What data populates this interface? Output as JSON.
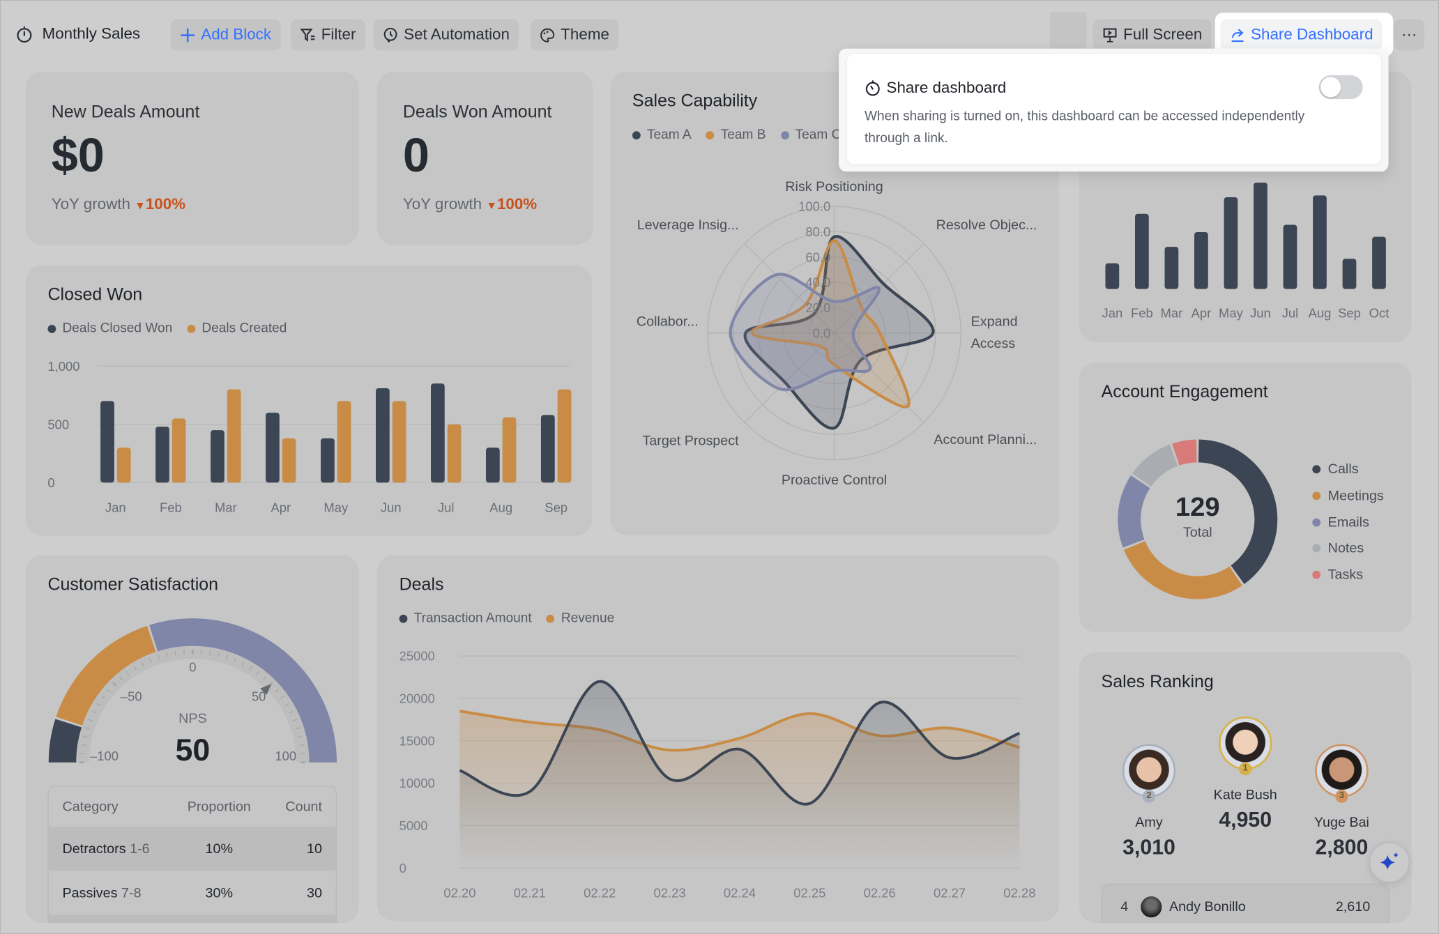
{
  "toolbar": {
    "title": "Monthly Sales",
    "add_block": "Add Block",
    "filter": "Filter",
    "set_automation": "Set Automation",
    "theme": "Theme",
    "full_screen": "Full Screen",
    "share_dashboard": "Share Dashboard",
    "more": "···",
    "accent": "#3370ff"
  },
  "share_popover": {
    "title": "Share dashboard",
    "description": "When sharing is turned on, this dashboard can be accessed independently through a link.",
    "toggle_on": false
  },
  "kpis": [
    {
      "label": "New Deals Amount",
      "value": "$0",
      "growth_label": "YoY growth",
      "growth_value": "100%",
      "direction": "down"
    },
    {
      "label": "Deals Won Amount",
      "value": "0",
      "growth_label": "YoY growth",
      "growth_value": "100%",
      "direction": "down"
    }
  ],
  "colors": {
    "dark": "#3c4553",
    "orange": "#c98c47",
    "purple": "#7f86a8",
    "gray": "#a9acb0",
    "red": "#d97a7a",
    "down": "#c8511c"
  },
  "chart_data": [
    {
      "id": "closed_won",
      "type": "bar",
      "title": "Closed Won",
      "categories": [
        "Jan",
        "Feb",
        "Mar",
        "Apr",
        "May",
        "Jun",
        "Jul",
        "Aug",
        "Sep"
      ],
      "series": [
        {
          "name": "Deals Closed Won",
          "values": [
            700,
            480,
            450,
            600,
            380,
            810,
            850,
            300,
            580
          ]
        },
        {
          "name": "Deals Created",
          "values": [
            300,
            550,
            800,
            380,
            700,
            700,
            500,
            560,
            800
          ]
        }
      ],
      "yticks": [
        "0",
        "500",
        "1,000"
      ],
      "ylim": [
        0,
        1000
      ],
      "grid": true,
      "legend": "top-left"
    },
    {
      "id": "sales_capability",
      "type": "radar",
      "title": "Sales Capability",
      "axes": [
        "Risk Positioning",
        "Resolve Objec...",
        "Expand Access",
        "Account Planni...",
        "Proactive Control",
        "Target Prospect",
        "Collabor...",
        "Leverage Insig..."
      ],
      "ticks": [
        "0.0",
        "20.0",
        "40.0",
        "60.0",
        "80.0",
        "100.0"
      ],
      "rlim": [
        0,
        100
      ],
      "series": [
        {
          "name": "Team A",
          "values": [
            76,
            55,
            78,
            30,
            75,
            55,
            70,
            22
          ]
        },
        {
          "name": "Team B",
          "values": [
            73,
            30,
            36,
            82,
            25,
            15,
            65,
            32
          ]
        },
        {
          "name": "Team C",
          "values": [
            25,
            50,
            15,
            40,
            30,
            62,
            82,
            65
          ]
        }
      ],
      "legend": "top-left"
    },
    {
      "id": "monthly_bars",
      "type": "bar",
      "categories": [
        "Jan",
        "Feb",
        "Mar",
        "Apr",
        "May",
        "Jun",
        "Jul",
        "Aug",
        "Sep",
        "Oct"
      ],
      "values": [
        28,
        82,
        46,
        62,
        100,
        116,
        70,
        102,
        33,
        57
      ]
    },
    {
      "id": "account_engagement",
      "type": "pie",
      "title": "Account Engagement",
      "center_value": "129",
      "center_label": "Total",
      "categories": [
        "Calls",
        "Meetings",
        "Emails",
        "Notes",
        "Tasks"
      ],
      "values": [
        52,
        37,
        20,
        13,
        7
      ],
      "legend": "right"
    },
    {
      "id": "customer_satisfaction",
      "type": "gauge",
      "title": "Customer Satisfaction",
      "label": "NPS",
      "value": 50,
      "display_value": "50",
      "range": [
        -100,
        100
      ],
      "tick_labels": [
        "-100",
        "-50",
        "0",
        "50",
        "100"
      ],
      "segments": [
        10,
        30,
        60
      ]
    },
    {
      "id": "deals",
      "type": "area",
      "title": "Deals",
      "x": [
        "02.20",
        "02.21",
        "02.22",
        "02.23",
        "02.24",
        "02.25",
        "02.26",
        "02.27",
        "02.28"
      ],
      "series": [
        {
          "name": "Transaction Amount",
          "values": [
            11500,
            9000,
            22000,
            10500,
            14000,
            7600,
            19500,
            13000,
            15900
          ]
        },
        {
          "name": "Revenue",
          "values": [
            18500,
            17200,
            16300,
            13900,
            15300,
            18200,
            15600,
            16500,
            14200
          ]
        }
      ],
      "yticks": [
        "0",
        "5000",
        "10000",
        "15000",
        "20000",
        "25000"
      ],
      "ylim": [
        0,
        25000
      ],
      "grid": true,
      "legend": "top-left"
    }
  ],
  "nps_table": {
    "headers": [
      "Category",
      "Proportion",
      "Count"
    ],
    "rows": [
      {
        "category": "Detractors",
        "range": "1-6",
        "proportion": "10%",
        "count": "10"
      },
      {
        "category": "Passives",
        "range": "7-8",
        "proportion": "30%",
        "count": "30"
      }
    ]
  },
  "sales_ranking": {
    "title": "Sales Ranking",
    "podium": [
      {
        "rank": "2",
        "name": "Amy",
        "value": "3,010",
        "ring": "#a9b0bd"
      },
      {
        "rank": "1",
        "name": "Kate Bush",
        "value": "4,950",
        "ring": "#d7b24a"
      },
      {
        "rank": "3",
        "name": "Yuge Bai",
        "value": "2,800",
        "ring": "#cf9462"
      }
    ],
    "list": [
      {
        "rank": "4",
        "name": "Andy Bonillo",
        "value": "2,610"
      }
    ]
  }
}
